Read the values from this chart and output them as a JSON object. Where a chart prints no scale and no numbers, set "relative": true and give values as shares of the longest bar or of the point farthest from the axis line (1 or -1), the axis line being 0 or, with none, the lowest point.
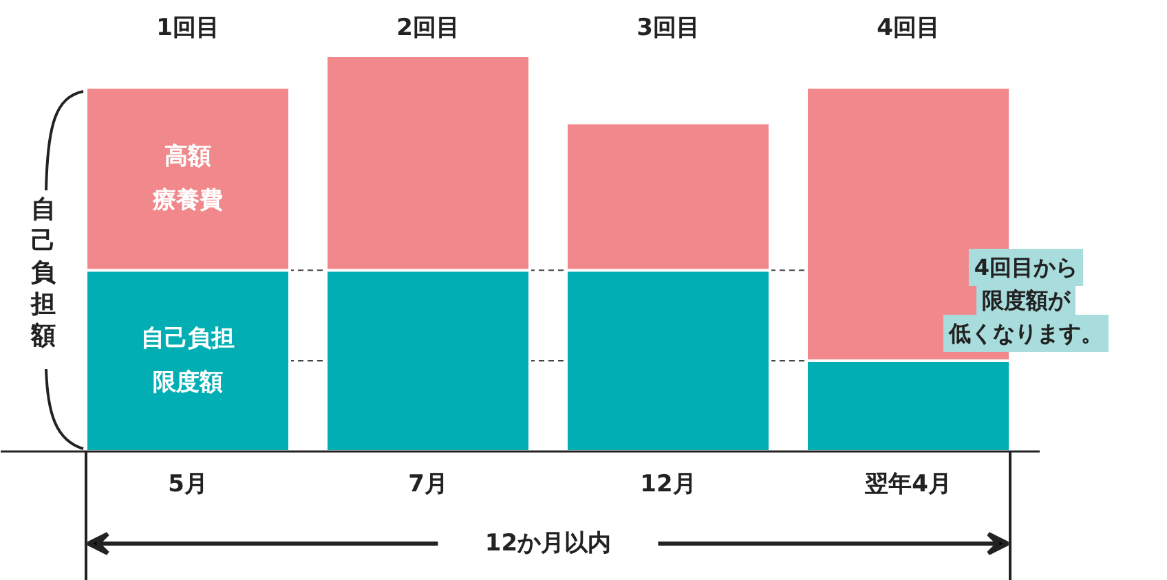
{
  "chart_data": {
    "type": "bar",
    "stacked": true,
    "relative": true,
    "ylabel": "自己負担額",
    "categories": [
      "5月",
      "7月",
      "12月",
      "翌年4月"
    ],
    "series": [
      {
        "name": "自己負担限度額",
        "color": "#00aeb3",
        "values": [
          0.458,
          0.458,
          0.458,
          0.229
        ]
      },
      {
        "name": "高額療養費",
        "color": "#f0888c",
        "values": [
          0.462,
          0.542,
          0.372,
          0.691
        ]
      }
    ],
    "ref_lines": [
      {
        "axis": "y",
        "value": 0.458,
        "color": "#444444",
        "line_style": "dashed"
      },
      {
        "axis": "y",
        "value": 0.229,
        "color": "#444444",
        "line_style": "dashed"
      }
    ],
    "annotations": [
      "1回目",
      "2回目",
      "3回目",
      "4回目",
      "4回目から",
      "限度額が",
      "低くなります。",
      "12か月以内"
    ]
  }
}
